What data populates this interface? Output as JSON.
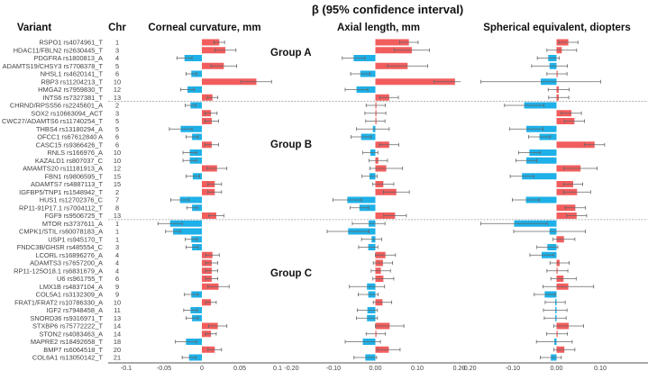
{
  "chart_data": {
    "type": "bar",
    "title": "β (95% confidence interval)",
    "column_headers": {
      "variant": "Variant",
      "chr": "Chr"
    },
    "colors": {
      "positive": "#f25d5d",
      "negative": "#1eb0e8",
      "whisker": "#666666"
    },
    "groups": [
      {
        "name": "Group A",
        "start": 0,
        "end": 7
      },
      {
        "name": "Group B",
        "start": 8,
        "end": 22
      },
      {
        "name": "Group C",
        "start": 23,
        "end": 40
      }
    ],
    "rows": [
      {
        "variant": "RSPO1 rs4074961_T",
        "chr": "1"
      },
      {
        "variant": "HDAC11/FBLN2 rs2630445_T",
        "chr": "3"
      },
      {
        "variant": "PDGFRA rs1800813_A",
        "chr": "4"
      },
      {
        "variant": "ADAMTS19/CHSY3 rs7708378_T",
        "chr": "5"
      },
      {
        "variant": "NHSL1 rs4620141_T",
        "chr": "6"
      },
      {
        "variant": "RBP3 rs11204213_T",
        "chr": "10"
      },
      {
        "variant": "HMGA2 rs7959830_T",
        "chr": "12"
      },
      {
        "variant": "INTS6 rs7327381_T",
        "chr": "13"
      },
      {
        "variant": "CHRND/RPSS56 rs2245601_A",
        "chr": "2"
      },
      {
        "variant": "SOX2 rs10663094_ACT",
        "chr": "3"
      },
      {
        "variant": "CWC27/ADAMTS6 rs11740254_T",
        "chr": "5"
      },
      {
        "variant": "THBS4 rs13180294_A",
        "chr": "5"
      },
      {
        "variant": "OFCC1 rs67612840 A",
        "chr": "6"
      },
      {
        "variant": "CASC15 rs9366426_T",
        "chr": "6"
      },
      {
        "variant": "RNLS rs166976_A",
        "chr": "10"
      },
      {
        "variant": "KAZALD1 rs807037_C",
        "chr": "10"
      },
      {
        "variant": "AMAMTS20 rs11181913_A",
        "chr": "12"
      },
      {
        "variant": "FBN1 rs9806595_T",
        "chr": "15"
      },
      {
        "variant": "ADAMTS7 rs4887113_T",
        "chr": "15"
      },
      {
        "variant": "IGFBP5/TNP1 rs1548942_T",
        "chr": "2"
      },
      {
        "variant": "HUS1 rs12702376_C",
        "chr": "7"
      },
      {
        "variant": "RP11-91P17.1 rs7004112_T",
        "chr": "8"
      },
      {
        "variant": "FGF9 rs9506725_T",
        "chr": "13"
      },
      {
        "variant": "MTOR rs3737611_A",
        "chr": "1"
      },
      {
        "variant": "CMPK1/STIL rs60078183_A",
        "chr": "1"
      },
      {
        "variant": "USP1 rs945170_T",
        "chr": "1"
      },
      {
        "variant": "FNDC3B/GHSR rs485554_C",
        "chr": "3"
      },
      {
        "variant": "LCORL rs16896276_A",
        "chr": "4"
      },
      {
        "variant": "ADAMTS3 rs7657200_A",
        "chr": "4"
      },
      {
        "variant": "RP11-125O18.1 rs6831679_A",
        "chr": "4"
      },
      {
        "variant": "U6 rs961755_T",
        "chr": "6"
      },
      {
        "variant": "LMX1B rs4837104_A",
        "chr": "9"
      },
      {
        "variant": "COL5A1 rs3132309_A",
        "chr": "9"
      },
      {
        "variant": "FRAT1/FRAT2 rs10786330_A",
        "chr": "10"
      },
      {
        "variant": "IGF2 rs7948458_A",
        "chr": "11"
      },
      {
        "variant": "SNORD36 rs9316971_T",
        "chr": "13"
      },
      {
        "variant": "STXBP6 rs75772222_T",
        "chr": "14"
      },
      {
        "variant": "STON2 rs4083463_A",
        "chr": "14"
      },
      {
        "variant": "MAPRE2 rs18492658_T",
        "chr": "18"
      },
      {
        "variant": "BMP7 rs6064518_T",
        "chr": "20"
      },
      {
        "variant": "COL6A1 rs13050142_T",
        "chr": "21"
      }
    ],
    "series": [
      {
        "name": "Corneal curvature, mm",
        "xlim": [
          -0.1,
          0.1
        ],
        "ticks": [
          "-0.1",
          "-0.05",
          "0",
          "0.05",
          "0.1"
        ],
        "values": [
          0.023,
          0.031,
          -0.023,
          0.029,
          -0.014,
          0.072,
          -0.019,
          0.014,
          -0.015,
          0.012,
          0.013,
          -0.028,
          -0.013,
          0.013,
          -0.016,
          -0.016,
          0.02,
          -0.012,
          0.017,
          0.017,
          -0.029,
          -0.013,
          0.019,
          -0.042,
          -0.038,
          -0.014,
          -0.013,
          0.014,
          0.013,
          0.013,
          0.013,
          0.022,
          -0.014,
          0.012,
          -0.015,
          -0.013,
          0.021,
          0.012,
          -0.021,
          0.017,
          -0.017
        ],
        "ci_half": [
          0.007,
          0.014,
          0.01,
          0.017,
          0.007,
          0.02,
          0.009,
          0.007,
          0.007,
          0.008,
          0.009,
          0.015,
          0.008,
          0.009,
          0.009,
          0.009,
          0.013,
          0.009,
          0.009,
          0.009,
          0.012,
          0.007,
          0.01,
          0.016,
          0.01,
          0.008,
          0.008,
          0.009,
          0.008,
          0.008,
          0.008,
          0.014,
          0.009,
          0.007,
          0.009,
          0.008,
          0.012,
          0.007,
          0.014,
          0.009,
          0.009
        ]
      },
      {
        "name": "Axial length, mm",
        "xlim": [
          -0.2,
          0.2
        ],
        "ticks": [
          "-0.20",
          "-0.10",
          "0.00",
          "0.10",
          "0.20"
        ],
        "values": [
          0.08,
          0.087,
          -0.052,
          0.077,
          -0.036,
          0.19,
          -0.045,
          0.033,
          0.001,
          0.0,
          0.0,
          -0.006,
          -0.034,
          0.033,
          -0.012,
          0.007,
          0.026,
          -0.014,
          0.019,
          0.05,
          -0.067,
          -0.038,
          0.047,
          -0.016,
          -0.065,
          -0.009,
          -0.017,
          0.024,
          0.018,
          0.013,
          0.019,
          -0.02,
          -0.017,
          0.017,
          -0.019,
          -0.02,
          0.034,
          0.001,
          -0.03,
          0.032,
          -0.024
        ],
        "ci_half": [
          0.022,
          0.042,
          0.027,
          0.048,
          0.023,
          0.05,
          0.027,
          0.022,
          0.023,
          0.025,
          0.023,
          0.039,
          0.024,
          0.023,
          0.018,
          0.022,
          0.039,
          0.018,
          0.025,
          0.031,
          0.034,
          0.022,
          0.027,
          0.039,
          0.05,
          0.024,
          0.023,
          0.024,
          0.023,
          0.023,
          0.025,
          0.042,
          0.024,
          0.022,
          0.024,
          0.025,
          0.034,
          0.023,
          0.042,
          0.027,
          0.027
        ]
      },
      {
        "name": "Spherical equivalent, diopters",
        "xlim": [
          -0.2,
          0.2
        ],
        "ticks": [
          "-0.20",
          "-0.10",
          "0.00",
          "0.10"
        ],
        "values": [
          0.027,
          0.012,
          -0.019,
          -0.016,
          0.001,
          -0.036,
          0.005,
          0.005,
          -0.074,
          0.034,
          0.041,
          -0.069,
          -0.039,
          0.087,
          -0.062,
          -0.069,
          0.055,
          -0.079,
          0.038,
          0.047,
          -0.07,
          0.043,
          0.046,
          -0.097,
          -0.016,
          0.017,
          -0.021,
          -0.034,
          0.007,
          0.002,
          0.016,
          0.027,
          -0.027,
          -0.003,
          -0.003,
          -0.003,
          0.028,
          0.001,
          -0.005,
          0.018,
          -0.013
        ],
        "ci_half": [
          0.022,
          0.034,
          0.025,
          0.041,
          0.023,
          0.137,
          0.024,
          0.023,
          0.045,
          0.023,
          0.023,
          0.038,
          0.025,
          0.023,
          0.025,
          0.024,
          0.038,
          0.027,
          0.022,
          0.031,
          0.031,
          0.023,
          0.023,
          0.076,
          0.082,
          0.025,
          0.024,
          0.027,
          0.022,
          0.024,
          0.029,
          0.058,
          0.024,
          0.023,
          0.027,
          0.025,
          0.034,
          0.024,
          0.041,
          0.024,
          0.024
        ]
      }
    ]
  }
}
